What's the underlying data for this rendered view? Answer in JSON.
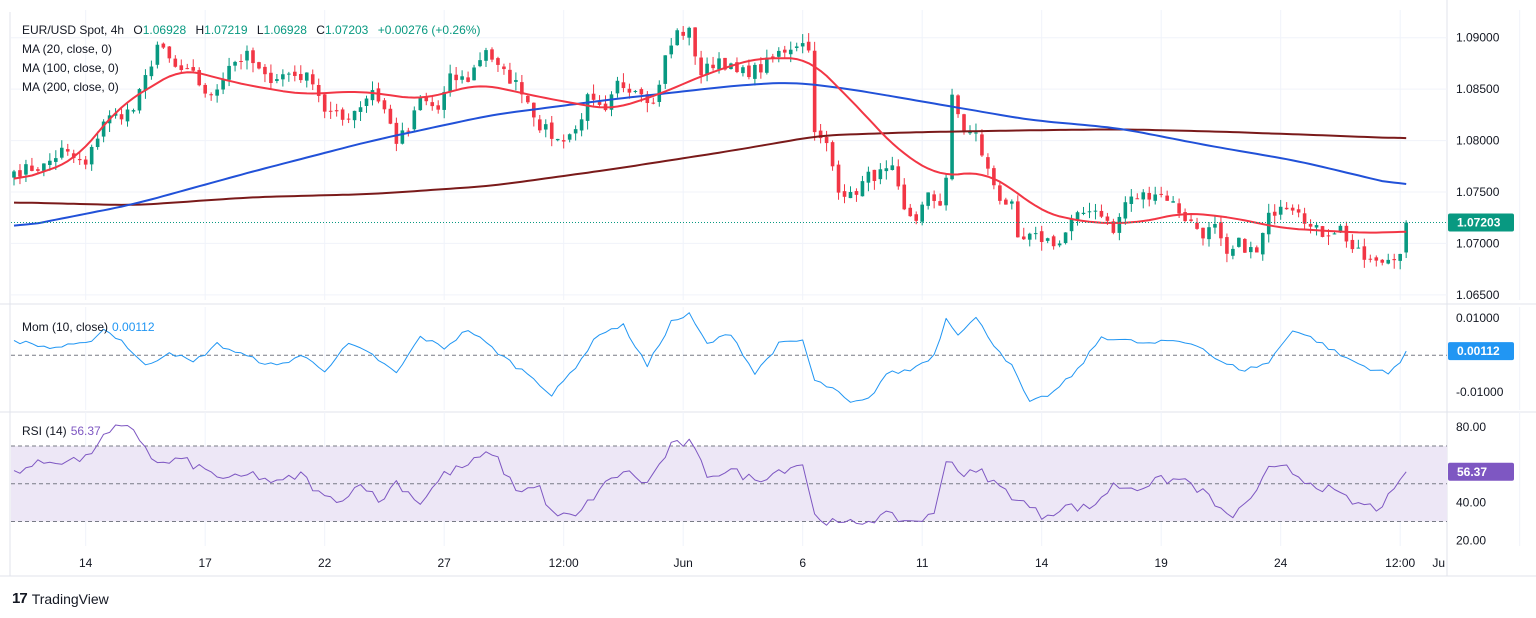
{
  "header": {
    "symbol": "EUR/USD Spot, 4h",
    "o_label": "O",
    "o": "1.06928",
    "h_label": "H",
    "h": "1.07219",
    "l_label": "L",
    "l": "1.06928",
    "c_label": "C",
    "c": "1.07203",
    "change": "+0.00276 (+0.26%)"
  },
  "legend": {
    "ma20": "MA (20, close, 0)",
    "ma100": "MA (100, close, 0)",
    "ma200": "MA (200, close, 0)",
    "mom_label": "Mom (10, close)",
    "mom_value": "0.00112",
    "rsi_label": "RSI (14)",
    "rsi_value": "56.37"
  },
  "brand": {
    "name": "TradingView"
  },
  "colors": {
    "bull": "#089981",
    "bear": "#f23645",
    "ma20": "#f23645",
    "ma100": "#2151d8",
    "ma200": "#7a1a1a",
    "mom": "#2196f3",
    "rsi": "#7e57c2",
    "rsi_band": "#ede7f6",
    "grid": "#f0f3fa",
    "axis_text": "#131722"
  },
  "chart_data": [
    {
      "type": "candlestick",
      "title": "EUR/USD Spot, 4h",
      "ylim": [
        1.0645,
        1.0925
      ],
      "y_ticks": [
        "1.09000",
        "1.08500",
        "1.08000",
        "1.07500",
        "1.07000",
        "1.06500"
      ],
      "y_tick_values": [
        1.09,
        1.085,
        1.08,
        1.075,
        1.07,
        1.065
      ],
      "x_ticks": [
        "14",
        "17",
        "22",
        "27",
        "12:00",
        "Jun",
        "6",
        "11",
        "14",
        "19",
        "24",
        "12:00",
        "Ju"
      ],
      "x_tick_index": [
        12,
        32,
        52,
        72,
        92,
        112,
        132,
        152,
        172,
        192,
        212,
        232,
        252
      ],
      "last_price": 1.07203,
      "last_price_label": "1.07203",
      "ohlc_anchors": [
        [
          0,
          1.077
        ],
        [
          5,
          1.0775
        ],
        [
          8,
          1.079
        ],
        [
          12,
          1.0775
        ],
        [
          15,
          1.082
        ],
        [
          20,
          1.083
        ],
        [
          22,
          1.086
        ],
        [
          24,
          1.0893
        ],
        [
          27,
          1.087
        ],
        [
          30,
          1.0863
        ],
        [
          33,
          1.084
        ],
        [
          36,
          1.0875
        ],
        [
          39,
          1.0882
        ],
        [
          42,
          1.086
        ],
        [
          46,
          1.0865
        ],
        [
          50,
          1.086
        ],
        [
          52,
          1.083
        ],
        [
          55,
          1.082
        ],
        [
          58,
          1.0835
        ],
        [
          60,
          1.085
        ],
        [
          62,
          1.083
        ],
        [
          64,
          1.08
        ],
        [
          66,
          1.081
        ],
        [
          68,
          1.084
        ],
        [
          71,
          1.083
        ],
        [
          73,
          1.086
        ],
        [
          76,
          1.086
        ],
        [
          79,
          1.089
        ],
        [
          81,
          1.087
        ],
        [
          83,
          1.086
        ],
        [
          85,
          1.085
        ],
        [
          88,
          1.0815
        ],
        [
          91,
          1.08
        ],
        [
          94,
          1.081
        ],
        [
          96,
          1.084
        ],
        [
          99,
          1.0825
        ],
        [
          101,
          1.0855
        ],
        [
          105,
          1.085
        ],
        [
          107,
          1.0835
        ],
        [
          109,
          1.088
        ],
        [
          111,
          1.0905
        ],
        [
          113,
          1.0905
        ],
        [
          115,
          1.0865
        ],
        [
          118,
          1.088
        ],
        [
          121,
          1.0865
        ],
        [
          125,
          1.087
        ],
        [
          128,
          1.0885
        ],
        [
          131,
          1.0895
        ],
        [
          133,
          1.0893
        ],
        [
          134,
          1.0805
        ],
        [
          136,
          1.0795
        ],
        [
          138,
          1.0755
        ],
        [
          140,
          1.0745
        ],
        [
          143,
          1.0765
        ],
        [
          147,
          1.077
        ],
        [
          149,
          1.073
        ],
        [
          151,
          1.0725
        ],
        [
          153,
          1.0745
        ],
        [
          155,
          1.074
        ],
        [
          156,
          1.0765
        ],
        [
          157,
          1.084
        ],
        [
          159,
          1.081
        ],
        [
          161,
          1.0805
        ],
        [
          163,
          1.077
        ],
        [
          165,
          1.0745
        ],
        [
          167,
          1.0735
        ],
        [
          168,
          1.07
        ],
        [
          170,
          1.0705
        ],
        [
          172,
          1.0705
        ],
        [
          175,
          1.07
        ],
        [
          177,
          1.072
        ],
        [
          180,
          1.0735
        ],
        [
          182,
          1.073
        ],
        [
          184,
          1.071
        ],
        [
          186,
          1.074
        ],
        [
          188,
          1.0745
        ],
        [
          191,
          1.075
        ],
        [
          193,
          1.0745
        ],
        [
          196,
          1.0725
        ],
        [
          199,
          1.071
        ],
        [
          201,
          1.0715
        ],
        [
          203,
          1.0685
        ],
        [
          205,
          1.07
        ],
        [
          208,
          1.069
        ],
        [
          210,
          1.0725
        ],
        [
          212,
          1.074
        ],
        [
          215,
          1.0735
        ],
        [
          217,
          1.0715
        ],
        [
          219,
          1.071
        ],
        [
          222,
          1.0715
        ],
        [
          224,
          1.0695
        ],
        [
          226,
          1.0685
        ],
        [
          228,
          1.068
        ],
        [
          230,
          1.0685
        ],
        [
          232,
          1.0693
        ],
        [
          233,
          1.07203
        ]
      ],
      "ma20_anchors": [
        [
          0,
          1.076
        ],
        [
          10,
          1.078
        ],
        [
          18,
          1.0835
        ],
        [
          28,
          1.087
        ],
        [
          38,
          1.0855
        ],
        [
          48,
          1.0845
        ],
        [
          58,
          1.0848
        ],
        [
          68,
          1.084
        ],
        [
          78,
          1.0855
        ],
        [
          90,
          1.084
        ],
        [
          100,
          1.083
        ],
        [
          108,
          1.0845
        ],
        [
          116,
          1.0865
        ],
        [
          124,
          1.088
        ],
        [
          133,
          1.088
        ],
        [
          140,
          1.084
        ],
        [
          148,
          1.079
        ],
        [
          155,
          1.0765
        ],
        [
          162,
          1.077
        ],
        [
          168,
          1.075
        ],
        [
          172,
          1.073
        ],
        [
          180,
          1.072
        ],
        [
          188,
          1.072
        ],
        [
          196,
          1.073
        ],
        [
          204,
          1.0725
        ],
        [
          212,
          1.0715
        ],
        [
          220,
          1.0712
        ],
        [
          228,
          1.071
        ],
        [
          233,
          1.0712
        ]
      ],
      "ma100_anchors": [
        [
          0,
          1.0715
        ],
        [
          20,
          1.0738
        ],
        [
          40,
          1.077
        ],
        [
          60,
          1.08
        ],
        [
          80,
          1.0825
        ],
        [
          100,
          1.084
        ],
        [
          120,
          1.0853
        ],
        [
          130,
          1.0857
        ],
        [
          140,
          1.085
        ],
        [
          155,
          1.0835
        ],
        [
          170,
          1.082
        ],
        [
          185,
          1.0812
        ],
        [
          200,
          1.0795
        ],
        [
          215,
          1.078
        ],
        [
          233,
          1.0755
        ]
      ],
      "ma200_anchors": [
        [
          0,
          1.074
        ],
        [
          20,
          1.0737
        ],
        [
          40,
          1.0745
        ],
        [
          60,
          1.0748
        ],
        [
          80,
          1.0756
        ],
        [
          100,
          1.0772
        ],
        [
          120,
          1.079
        ],
        [
          135,
          1.0805
        ],
        [
          150,
          1.0808
        ],
        [
          170,
          1.081
        ],
        [
          185,
          1.0811
        ],
        [
          200,
          1.0809
        ],
        [
          215,
          1.0806
        ],
        [
          233,
          1.0802
        ]
      ]
    },
    {
      "type": "line",
      "title": "Mom (10, close)",
      "ylim": [
        -0.0148,
        0.0125
      ],
      "y_ticks": [
        "0.01000",
        "-0.01000"
      ],
      "y_tick_values": [
        0.01,
        -0.01
      ],
      "last_value": 0.00112,
      "last_value_label": "0.00112",
      "anchors": [
        [
          0,
          0.004
        ],
        [
          6,
          0.002
        ],
        [
          12,
          0.003
        ],
        [
          15,
          0.007
        ],
        [
          18,
          0.004
        ],
        [
          22,
          -0.003
        ],
        [
          26,
          0.001
        ],
        [
          30,
          -0.002
        ],
        [
          34,
          0.003
        ],
        [
          40,
          -0.001
        ],
        [
          44,
          -0.003
        ],
        [
          48,
          0.0
        ],
        [
          52,
          -0.004
        ],
        [
          56,
          0.003
        ],
        [
          60,
          0.0
        ],
        [
          64,
          -0.005
        ],
        [
          68,
          0.005
        ],
        [
          72,
          0.002
        ],
        [
          76,
          0.007
        ],
        [
          80,
          0.002
        ],
        [
          84,
          -0.003
        ],
        [
          87,
          -0.006
        ],
        [
          90,
          -0.011
        ],
        [
          94,
          -0.003
        ],
        [
          98,
          0.006
        ],
        [
          102,
          0.008
        ],
        [
          106,
          -0.003
        ],
        [
          110,
          0.009
        ],
        [
          113,
          0.011
        ],
        [
          116,
          0.003
        ],
        [
          120,
          0.006
        ],
        [
          124,
          -0.005
        ],
        [
          128,
          0.003
        ],
        [
          132,
          0.004
        ],
        [
          134,
          -0.007
        ],
        [
          137,
          -0.009
        ],
        [
          140,
          -0.013
        ],
        [
          143,
          -0.012
        ],
        [
          146,
          -0.005
        ],
        [
          150,
          -0.004
        ],
        [
          154,
          0.0
        ],
        [
          156,
          0.01
        ],
        [
          158,
          0.006
        ],
        [
          161,
          0.01
        ],
        [
          164,
          0.003
        ],
        [
          167,
          -0.003
        ],
        [
          170,
          -0.013
        ],
        [
          174,
          -0.01
        ],
        [
          178,
          -0.004
        ],
        [
          182,
          0.005
        ],
        [
          186,
          0.004
        ],
        [
          190,
          0.003
        ],
        [
          194,
          0.004
        ],
        [
          198,
          0.003
        ],
        [
          202,
          -0.002
        ],
        [
          206,
          -0.004
        ],
        [
          210,
          -0.002
        ],
        [
          214,
          0.007
        ],
        [
          218,
          0.004
        ],
        [
          222,
          0.0
        ],
        [
          226,
          -0.003
        ],
        [
          230,
          -0.005
        ],
        [
          232,
          -0.002
        ],
        [
          233,
          0.00112
        ]
      ]
    },
    {
      "type": "line",
      "title": "RSI (14)",
      "ylim": [
        17,
        87
      ],
      "y_ticks": [
        "80.00",
        "40.00",
        "20.00"
      ],
      "y_tick_values": [
        80,
        40,
        20
      ],
      "bands": [
        30,
        50,
        70
      ],
      "last_value": 56.37,
      "last_value_label": "56.37",
      "anchors": [
        [
          0,
          57
        ],
        [
          6,
          62
        ],
        [
          12,
          63
        ],
        [
          14,
          72
        ],
        [
          17,
          79
        ],
        [
          20,
          79
        ],
        [
          24,
          60
        ],
        [
          28,
          63
        ],
        [
          32,
          57
        ],
        [
          36,
          52
        ],
        [
          40,
          55
        ],
        [
          44,
          50
        ],
        [
          48,
          55
        ],
        [
          52,
          42
        ],
        [
          56,
          43
        ],
        [
          58,
          52
        ],
        [
          61,
          40
        ],
        [
          64,
          51
        ],
        [
          68,
          40
        ],
        [
          72,
          55
        ],
        [
          76,
          60
        ],
        [
          80,
          67
        ],
        [
          84,
          47
        ],
        [
          88,
          48
        ],
        [
          90,
          34
        ],
        [
          94,
          32
        ],
        [
          98,
          47
        ],
        [
          102,
          57
        ],
        [
          106,
          50
        ],
        [
          110,
          70
        ],
        [
          113,
          72
        ],
        [
          116,
          55
        ],
        [
          120,
          57
        ],
        [
          124,
          52
        ],
        [
          128,
          57
        ],
        [
          132,
          61
        ],
        [
          134,
          33
        ],
        [
          138,
          28
        ],
        [
          142,
          30
        ],
        [
          146,
          33
        ],
        [
          150,
          30
        ],
        [
          154,
          33
        ],
        [
          156,
          64
        ],
        [
          159,
          55
        ],
        [
          162,
          56
        ],
        [
          165,
          48
        ],
        [
          168,
          42
        ],
        [
          172,
          33
        ],
        [
          176,
          38
        ],
        [
          180,
          37
        ],
        [
          184,
          49
        ],
        [
          188,
          48
        ],
        [
          192,
          52
        ],
        [
          196,
          52
        ],
        [
          200,
          43
        ],
        [
          203,
          32
        ],
        [
          206,
          38
        ],
        [
          210,
          57
        ],
        [
          213,
          58
        ],
        [
          216,
          52
        ],
        [
          220,
          47
        ],
        [
          224,
          40
        ],
        [
          228,
          37
        ],
        [
          231,
          45
        ],
        [
          233,
          56.37
        ]
      ]
    }
  ]
}
